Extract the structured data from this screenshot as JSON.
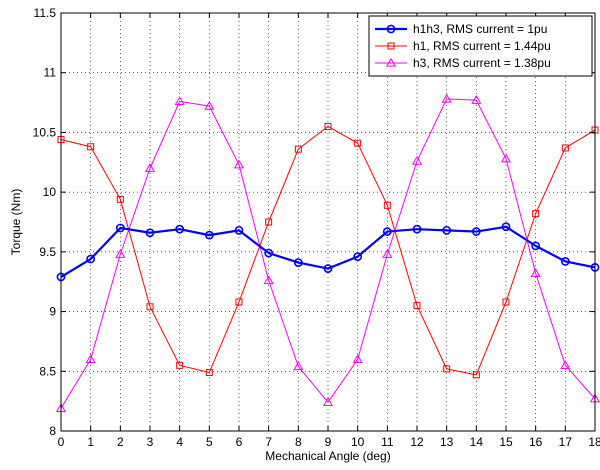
{
  "chart_data": {
    "type": "line",
    "xlabel": "Mechanical Angle (deg)",
    "ylabel": "Torque (Nm)",
    "xlim": [
      0,
      18
    ],
    "ylim": [
      8,
      11.5
    ],
    "xticks": [
      0,
      1,
      2,
      3,
      4,
      5,
      6,
      7,
      8,
      9,
      10,
      11,
      12,
      13,
      14,
      15,
      16,
      17,
      18
    ],
    "yticks": [
      8,
      8.5,
      9,
      9.5,
      10,
      10.5,
      11,
      11.5
    ],
    "ytick_labels": [
      "8",
      "8.5",
      "9",
      "9.5",
      "10",
      "10.5",
      "11",
      "11.5"
    ],
    "grid": true,
    "legend_position": "top-right",
    "x": [
      0,
      1,
      2,
      3,
      4,
      5,
      6,
      7,
      8,
      9,
      10,
      11,
      12,
      13,
      14,
      15,
      16,
      17,
      18
    ],
    "series": [
      {
        "name": "h1h3, RMS current = 1pu",
        "color": "#0000ff",
        "marker": "circle",
        "values": [
          9.29,
          9.44,
          9.7,
          9.66,
          9.69,
          9.64,
          9.68,
          9.49,
          9.41,
          9.36,
          9.46,
          9.67,
          9.69,
          9.68,
          9.67,
          9.71,
          9.55,
          9.42,
          9.37
        ]
      },
      {
        "name": "h1, RMS current = 1.44pu",
        "color": "#ff0000",
        "marker": "square",
        "values": [
          10.44,
          10.38,
          9.94,
          9.04,
          8.55,
          8.49,
          9.08,
          9.75,
          10.36,
          10.55,
          10.41,
          9.89,
          9.05,
          8.52,
          8.47,
          9.08,
          9.82,
          10.37,
          10.52
        ]
      },
      {
        "name": "h3, RMS current = 1.38pu",
        "color": "#ff00ff",
        "marker": "triangle",
        "values": [
          8.19,
          8.6,
          9.48,
          10.2,
          10.76,
          10.72,
          10.23,
          9.26,
          8.54,
          8.24,
          8.6,
          9.48,
          10.26,
          10.78,
          10.77,
          10.28,
          9.32,
          8.55,
          8.27
        ]
      }
    ]
  }
}
